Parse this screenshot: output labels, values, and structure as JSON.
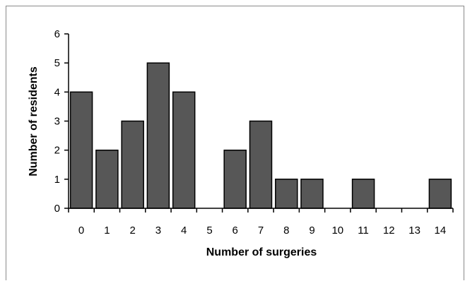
{
  "chart_data": {
    "type": "bar",
    "title": "",
    "xlabel": "Number of surgeries",
    "ylabel": "Number of residents",
    "categories": [
      "0",
      "1",
      "2",
      "3",
      "4",
      "5",
      "6",
      "7",
      "8",
      "9",
      "10",
      "11",
      "12",
      "13",
      "14"
    ],
    "values": [
      4,
      2,
      3,
      5,
      4,
      0,
      2,
      3,
      1,
      1,
      0,
      1,
      0,
      0,
      1
    ],
    "y_ticks": [
      "0",
      "1",
      "2",
      "3",
      "4",
      "5",
      "6"
    ],
    "ylim": [
      0,
      6
    ],
    "grid": false,
    "legend": "none",
    "colors": {
      "bar_fill": "#575757",
      "bar_stroke": "#000000",
      "axis": "#000000"
    }
  }
}
